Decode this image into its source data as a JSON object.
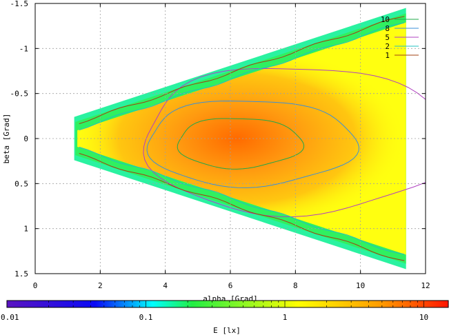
{
  "chart_data": {
    "type": "heatmap",
    "title": "",
    "xlabel": "alpha [Grad]",
    "ylabel": "beta [Grad]",
    "xlim": [
      0,
      12
    ],
    "ylim": [
      -1.5,
      1.5
    ],
    "y_axis_inverted": true,
    "grid": true,
    "x_ticks": [
      0,
      2,
      4,
      6,
      8,
      10,
      12
    ],
    "x_tick_labels": [
      "0",
      "2",
      "4",
      "6",
      "8",
      "10",
      "12"
    ],
    "y_ticks": [
      -1.5,
      -1,
      -0.5,
      0,
      0.5,
      1,
      1.5
    ],
    "y_tick_labels": [
      "-1.5",
      "-1",
      "-0.5",
      "0",
      "0.5",
      "1",
      "1.5"
    ],
    "colorbar": {
      "label": "E [lx]",
      "scale": "log",
      "range": [
        0.01,
        15
      ],
      "tick_labels": [
        "0.01",
        "0.1",
        "1",
        "10"
      ],
      "tick_values": [
        0.01,
        0.1,
        1,
        10
      ],
      "colors": [
        "#5a14c0",
        "#0a0af5",
        "#00ffff",
        "#22ee44",
        "#ffff00",
        "#ff9a00",
        "#ff1400"
      ]
    },
    "field_extent": {
      "alpha_min": 1.2,
      "alpha_max": 11.4,
      "beta_halfwidth_at_min": 0.24,
      "beta_halfwidth_at_max": 1.45
    },
    "peak": {
      "alpha": 6.2,
      "beta": 0.0
    },
    "legend": {
      "position": "top-right"
    },
    "series": [
      {
        "name": "10",
        "type": "contour",
        "level": 10,
        "color": "#1fa84a",
        "ring": {
          "center_alpha": 6.2,
          "center_beta": 0.05,
          "half_width": 2.0,
          "half_height": 0.28
        }
      },
      {
        "name": "8",
        "type": "contour",
        "level": 8,
        "color": "#3a8fd8",
        "ring": {
          "center_alpha": 6.5,
          "center_beta": 0.05,
          "half_width": 3.35,
          "half_height": 0.48
        }
      },
      {
        "name": "5",
        "type": "contour",
        "level": 5,
        "color": "#b040c0",
        "ring": {
          "center_alpha": 7.9,
          "center_beta": 0.02,
          "half_width": 5.0,
          "half_height": 0.82
        }
      },
      {
        "name": "2",
        "type": "contour",
        "level": 2,
        "color": "#20c0c0"
      },
      {
        "name": "1",
        "type": "contour",
        "level": 1,
        "color": "#a04010"
      }
    ]
  }
}
